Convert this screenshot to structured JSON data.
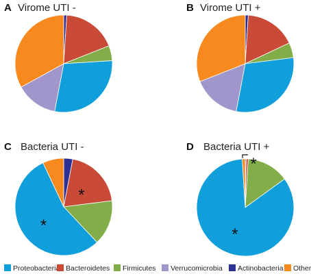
{
  "legend": {
    "items": [
      {
        "label": "Proteobacteria",
        "color": "#109fdb"
      },
      {
        "label": "Bacteroidetes",
        "color": "#c94a36"
      },
      {
        "label": "Firmicutes",
        "color": "#83ad48"
      },
      {
        "label": "Verrucomicrobia",
        "color": "#a096cb"
      },
      {
        "label": "Actinobacteria",
        "color": "#2e3194"
      },
      {
        "label": "Other",
        "color": "#f7891f"
      }
    ]
  },
  "chart_data": [
    {
      "type": "pie",
      "panel": "A",
      "title": "Virome UTI -",
      "categories": [
        "Actinobacteria",
        "Bacteroidetes",
        "Firmicutes",
        "Proteobacteria",
        "Verrucomicrobia",
        "Other"
      ],
      "values": [
        1,
        18,
        5,
        29,
        14,
        33
      ],
      "annotations": []
    },
    {
      "type": "pie",
      "panel": "B",
      "title": "Virome UTI +",
      "categories": [
        "Actinobacteria",
        "Bacteroidetes",
        "Firmicutes",
        "Proteobacteria",
        "Verrucomicrobia",
        "Other"
      ],
      "values": [
        1,
        17,
        5,
        30,
        16,
        31
      ],
      "annotations": []
    },
    {
      "type": "pie",
      "panel": "C",
      "title": "Bacteria UTI -",
      "categories": [
        "Actinobacteria",
        "Bacteroidetes",
        "Firmicutes",
        "Proteobacteria",
        "Other"
      ],
      "values": [
        3,
        20,
        15,
        55,
        7
      ],
      "annotations": [
        {
          "text": "*",
          "category": "Bacteroidetes"
        },
        {
          "text": "*",
          "category": "Proteobacteria"
        }
      ]
    },
    {
      "type": "pie",
      "panel": "D",
      "title": "Bacteria UTI +",
      "categories": [
        "Actinobacteria",
        "Bacteroidetes",
        "Firmicutes",
        "Proteobacteria",
        "Other"
      ],
      "values": [
        0.3,
        0.7,
        14,
        84,
        1
      ],
      "annotations": [
        {
          "text": "*",
          "category": "Bacteroidetes"
        },
        {
          "text": "*",
          "category": "Proteobacteria"
        }
      ]
    }
  ]
}
